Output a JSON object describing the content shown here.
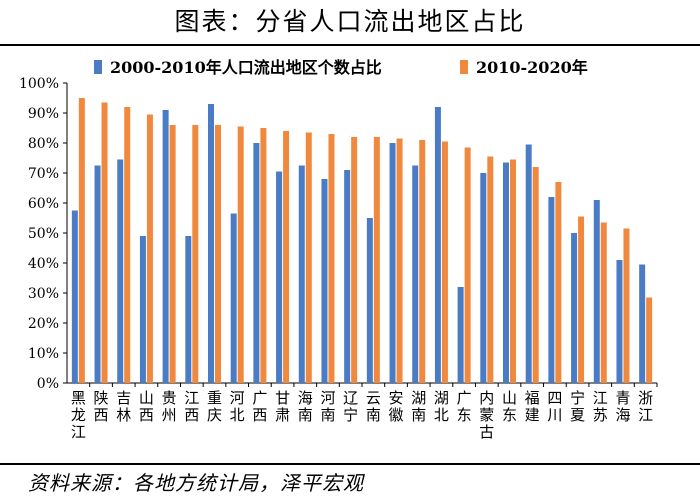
{
  "title": "图表：分省人口流出地区占比",
  "source": "资料来源：各地方统计局，泽平宏观",
  "chart_data": {
    "type": "bar",
    "title": "图表：分省人口流出地区占比",
    "xlabel": "",
    "ylabel": "",
    "ylim": [
      0,
      100
    ],
    "yticks": [
      "0%",
      "10%",
      "20%",
      "30%",
      "40%",
      "50%",
      "60%",
      "70%",
      "80%",
      "90%",
      "100%"
    ],
    "grid": false,
    "legend_position": "top",
    "categories": [
      "黑龙江",
      "陕西",
      "吉林",
      "山西",
      "贵州",
      "江西",
      "重庆",
      "河北",
      "广西",
      "甘肃",
      "海南",
      "河南",
      "辽宁",
      "云南",
      "安徽",
      "湖南",
      "湖北",
      "广东",
      "内蒙古",
      "山东",
      "福建",
      "四川",
      "宁夏",
      "江苏",
      "青海",
      "浙江"
    ],
    "series": [
      {
        "name": "2000-2010年人口流出地区个数占比",
        "color": "#4a7cc6",
        "values": [
          57.5,
          72.5,
          74.5,
          49,
          91,
          49,
          93,
          56.5,
          80,
          70.5,
          72.5,
          68,
          71,
          55,
          80,
          72.5,
          92,
          32,
          70,
          73.5,
          79.5,
          62,
          50,
          61,
          41,
          39.5
        ]
      },
      {
        "name": "2010-2020年",
        "color": "#f0883e",
        "values": [
          95,
          93.5,
          92,
          89.5,
          86,
          86,
          86,
          85.5,
          85,
          84,
          83.5,
          83,
          82,
          82,
          81.5,
          81,
          80.5,
          78.5,
          75.5,
          74.5,
          72,
          67,
          55.5,
          53.5,
          51.5,
          28.5
        ]
      }
    ]
  }
}
